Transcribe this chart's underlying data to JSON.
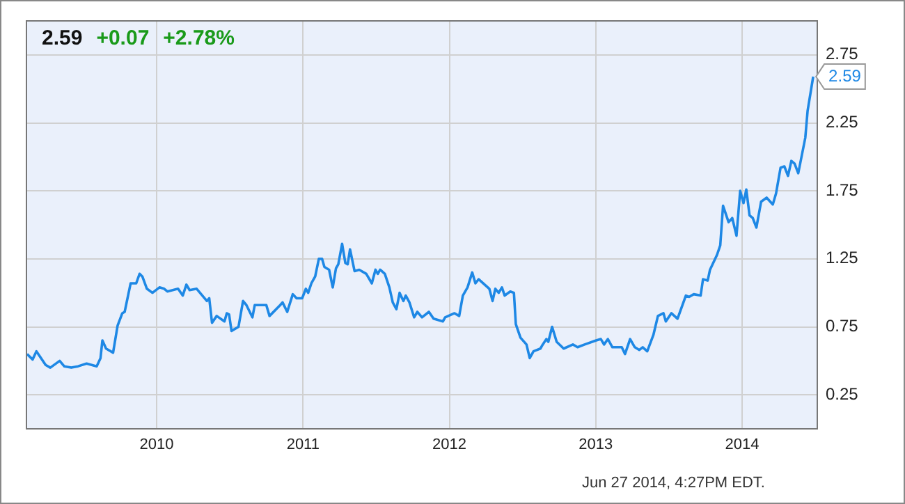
{
  "chart_data": {
    "type": "line",
    "color": "#1e88e5",
    "x": [
      2009.114,
      2009.152,
      2009.178,
      2009.241,
      2009.273,
      2009.337,
      2009.368,
      2009.416,
      2009.463,
      2009.521,
      2009.59,
      2009.616,
      2009.629,
      2009.654,
      2009.702,
      2009.733,
      2009.765,
      2009.781,
      2009.822,
      2009.86,
      2009.883,
      2009.902,
      2009.933,
      2009.971,
      2010.019,
      2010.051,
      2010.073,
      2010.146,
      2010.178,
      2010.203,
      2010.225,
      2010.273,
      2010.343,
      2010.359,
      2010.378,
      2010.41,
      2010.463,
      2010.479,
      2010.495,
      2010.511,
      2010.559,
      2010.59,
      2010.613,
      2010.654,
      2010.67,
      2010.749,
      2010.771,
      2010.844,
      2010.86,
      2010.892,
      2010.93,
      2010.956,
      2010.994,
      2011.019,
      2011.035,
      2011.057,
      2011.083,
      2011.108,
      2011.13,
      2011.146,
      2011.178,
      2011.203,
      2011.225,
      2011.241,
      2011.267,
      2011.289,
      2011.305,
      2011.321,
      2011.352,
      2011.384,
      2011.432,
      2011.47,
      2011.495,
      2011.511,
      2011.527,
      2011.559,
      2011.59,
      2011.613,
      2011.638,
      2011.66,
      2011.686,
      2011.702,
      2011.727,
      2011.759,
      2011.781,
      2011.813,
      2011.86,
      2011.892,
      2011.956,
      2011.971,
      2012.035,
      2012.067,
      2012.092,
      2012.124,
      2012.156,
      2012.178,
      2012.2,
      2012.273,
      2012.295,
      2012.314,
      2012.337,
      2012.359,
      2012.378,
      2012.416,
      2012.441,
      2012.454,
      2012.486,
      2012.527,
      2012.549,
      2012.575,
      2012.622,
      2012.638,
      2012.663,
      2012.676,
      2012.702,
      2012.733,
      2012.781,
      2012.844,
      2012.876,
      2012.924,
      2013.003,
      2013.035,
      2013.057,
      2013.083,
      2013.114,
      2013.178,
      2013.2,
      2013.235,
      2013.267,
      2013.298,
      2013.321,
      2013.352,
      2013.394,
      2013.425,
      2013.463,
      2013.479,
      2013.517,
      2013.559,
      2013.616,
      2013.638,
      2013.67,
      2013.717,
      2013.733,
      2013.765,
      2013.781,
      2013.829,
      2013.851,
      2013.87,
      2013.908,
      2013.933,
      2013.962,
      2013.987,
      2014.01,
      2014.029,
      2014.051,
      2014.073,
      2014.098,
      2014.13,
      2014.168,
      2014.21,
      2014.232,
      2014.263,
      2014.289,
      2014.314,
      2014.337,
      2014.359,
      2014.384,
      2014.432,
      2014.448,
      2014.486
    ],
    "values": [
      0.55,
      0.51,
      0.57,
      0.47,
      0.45,
      0.5,
      0.46,
      0.45,
      0.46,
      0.48,
      0.46,
      0.52,
      0.65,
      0.59,
      0.56,
      0.76,
      0.85,
      0.86,
      1.07,
      1.07,
      1.14,
      1.12,
      1.03,
      1.0,
      1.04,
      1.03,
      1.01,
      1.03,
      0.98,
      1.06,
      1.02,
      1.03,
      0.94,
      0.96,
      0.78,
      0.83,
      0.79,
      0.85,
      0.84,
      0.72,
      0.75,
      0.94,
      0.91,
      0.82,
      0.91,
      0.91,
      0.83,
      0.91,
      0.93,
      0.86,
      0.99,
      0.96,
      0.96,
      1.03,
      1.0,
      1.07,
      1.12,
      1.25,
      1.25,
      1.19,
      1.17,
      1.04,
      1.18,
      1.21,
      1.36,
      1.22,
      1.21,
      1.32,
      1.16,
      1.17,
      1.14,
      1.07,
      1.17,
      1.14,
      1.17,
      1.14,
      1.04,
      0.93,
      0.88,
      1.0,
      0.94,
      0.98,
      0.93,
      0.82,
      0.86,
      0.82,
      0.86,
      0.81,
      0.79,
      0.82,
      0.85,
      0.83,
      0.98,
      1.04,
      1.15,
      1.07,
      1.1,
      1.03,
      0.94,
      1.03,
      1.0,
      1.04,
      0.98,
      1.01,
      1.0,
      0.77,
      0.67,
      0.62,
      0.52,
      0.57,
      0.59,
      0.62,
      0.66,
      0.64,
      0.75,
      0.64,
      0.59,
      0.62,
      0.6,
      0.62,
      0.65,
      0.66,
      0.62,
      0.66,
      0.6,
      0.6,
      0.55,
      0.66,
      0.6,
      0.58,
      0.6,
      0.57,
      0.69,
      0.83,
      0.85,
      0.79,
      0.85,
      0.81,
      0.98,
      0.97,
      0.99,
      0.98,
      1.1,
      1.09,
      1.17,
      1.28,
      1.35,
      1.64,
      1.52,
      1.55,
      1.42,
      1.75,
      1.66,
      1.76,
      1.57,
      1.55,
      1.48,
      1.67,
      1.7,
      1.65,
      1.73,
      1.92,
      1.93,
      1.86,
      1.97,
      1.95,
      1.88,
      2.14,
      2.34,
      2.59
    ],
    "xlim": [
      2009.11,
      2014.514
    ],
    "xticks": [
      2010,
      2011,
      2012,
      2013,
      2014
    ],
    "ylim": [
      0,
      3
    ],
    "yticks": [
      0.25,
      0.75,
      1.25,
      1.75,
      2.25,
      2.75
    ],
    "grid": true,
    "legend": false,
    "marker": "none",
    "line_style": "solid",
    "annotations": [
      "2.59",
      "+0.07",
      "+2.78%",
      {
        "text": "2.59",
        "x": 2014.486,
        "y": 2.59
      },
      "Jun 27 2014, 4:27PM EDT."
    ]
  }
}
